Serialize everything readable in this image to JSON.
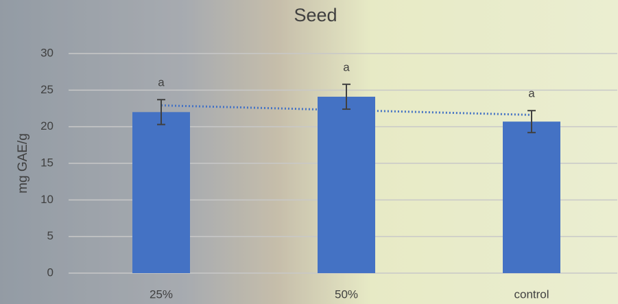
{
  "chart_data": {
    "type": "bar",
    "title": "Seed",
    "y_label": "mg GAE/g",
    "categories": [
      "25%",
      "50%",
      "control"
    ],
    "values": [
      22.0,
      24.1,
      20.7
    ],
    "errors": [
      1.7,
      1.7,
      1.5
    ],
    "annotations": [
      "a",
      "a",
      "a"
    ],
    "color": "#4472c4",
    "trendline": true,
    "trendline_color": "#4472c4",
    "ylim": [
      0,
      30
    ],
    "yticks": [
      0,
      5,
      10,
      15,
      20,
      25,
      30
    ],
    "grid": true
  }
}
